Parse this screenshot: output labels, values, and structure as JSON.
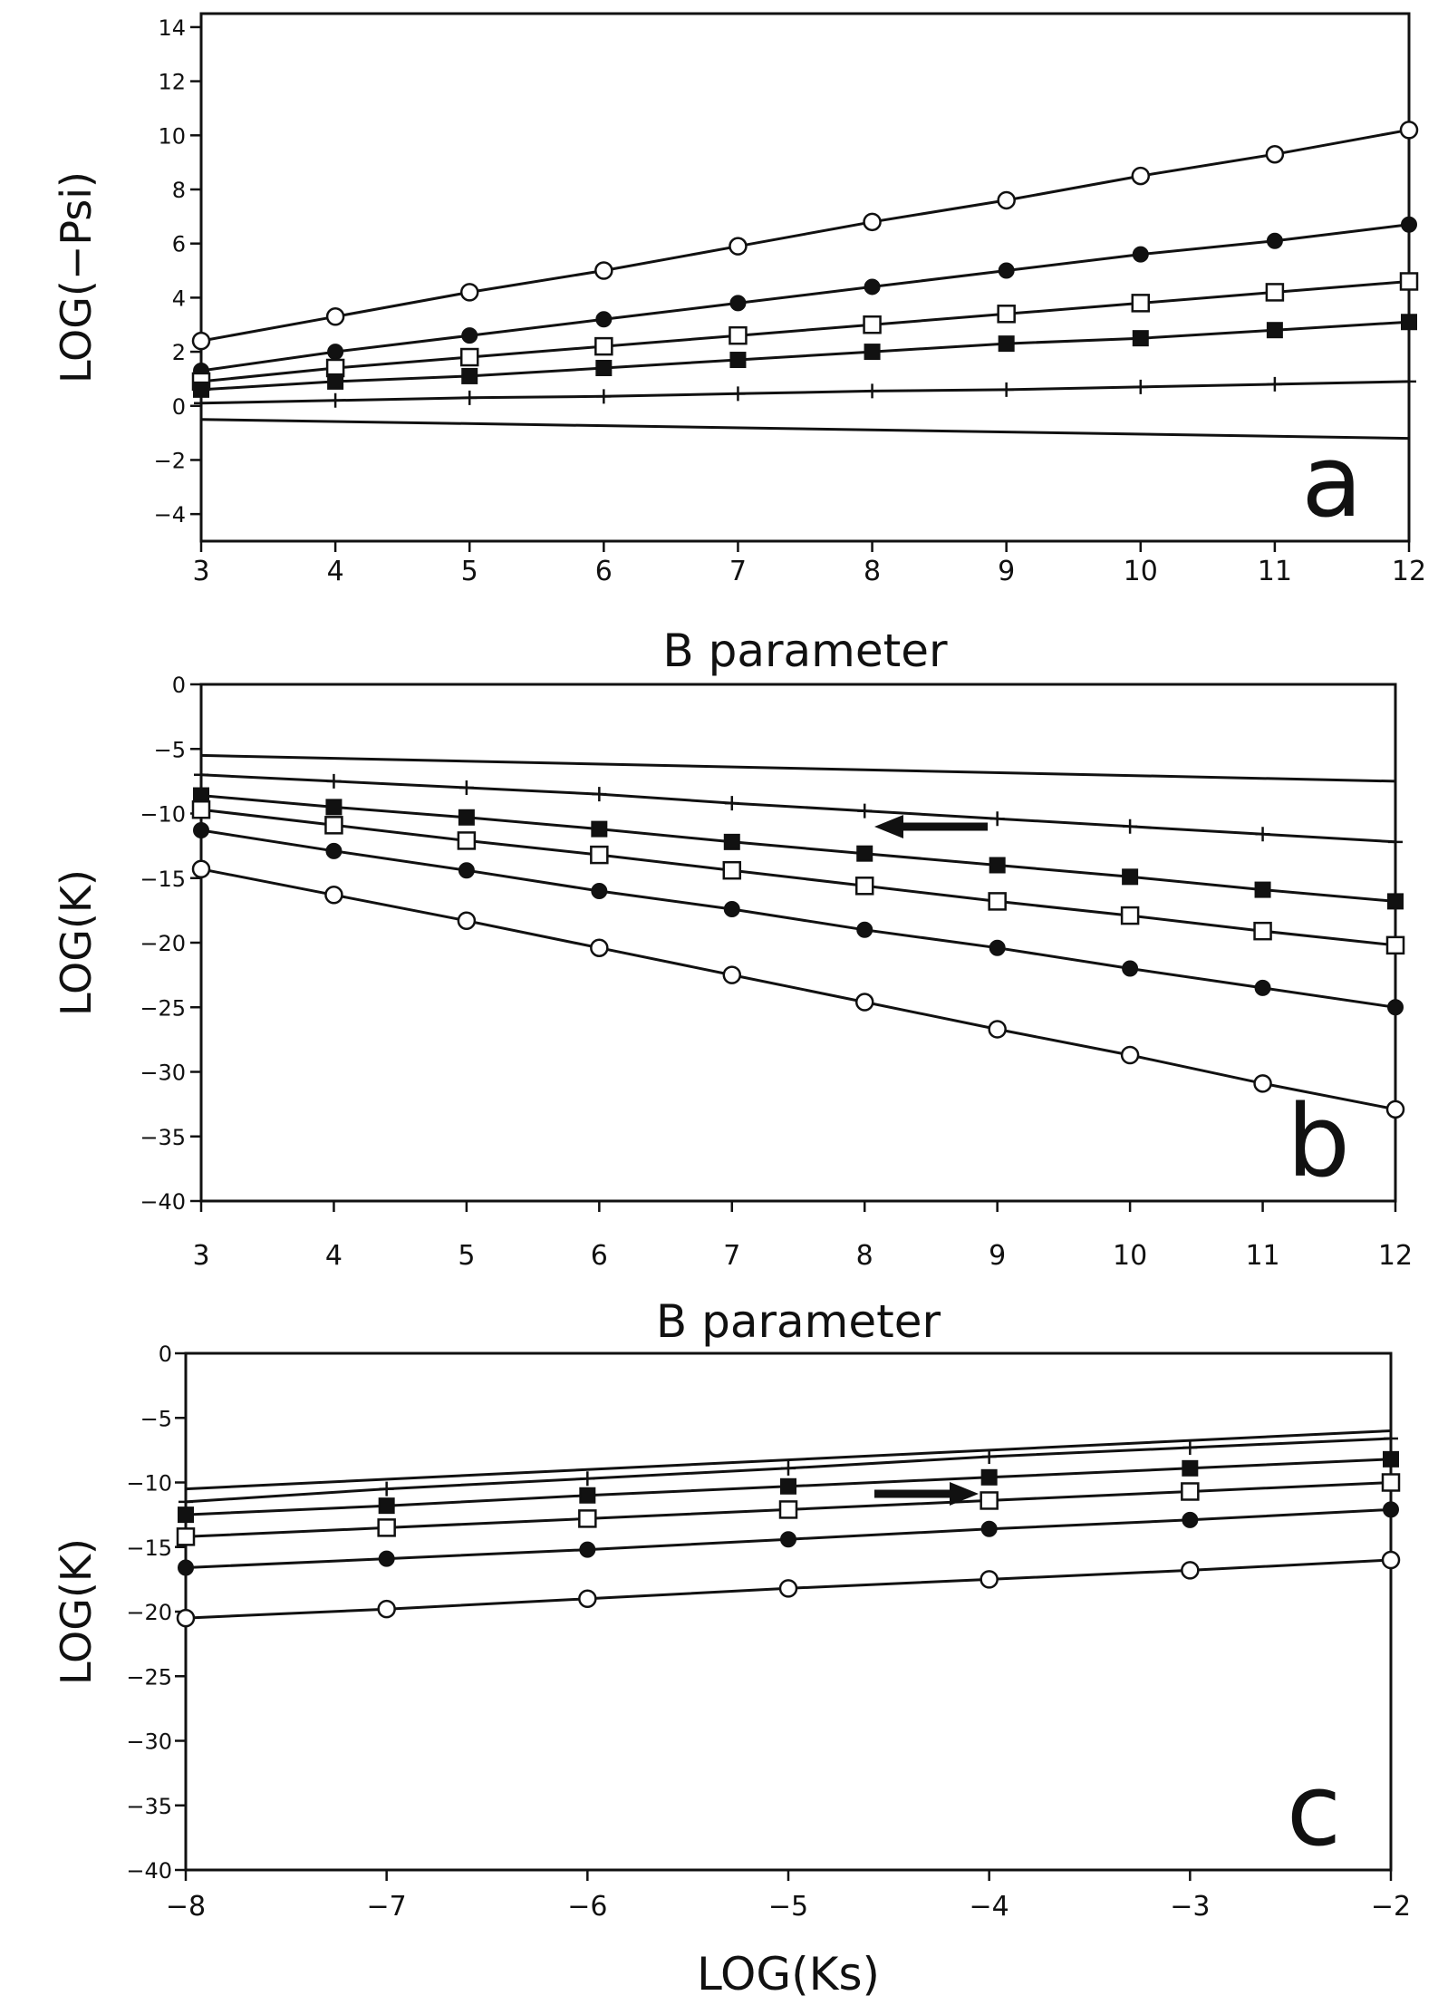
{
  "colors": {
    "ink": "#111111",
    "paper": "#ffffff"
  },
  "chart_data": [
    {
      "type": "line",
      "panel_label": "a",
      "xlabel": "B parameter",
      "ylabel": "LOG(−Psi)",
      "xlim": [
        3,
        12
      ],
      "ylim": [
        -5,
        14.5
      ],
      "xticks": [
        3,
        4,
        5,
        6,
        7,
        8,
        9,
        10,
        11,
        12
      ],
      "yticks": [
        14,
        12,
        10,
        8,
        6,
        4,
        2,
        0,
        -2,
        -4
      ],
      "grid": false,
      "series": [
        {
          "marker": "open-circle",
          "x": [
            3,
            4,
            5,
            6,
            7,
            8,
            9,
            10,
            11,
            12
          ],
          "y": [
            2.4,
            3.3,
            4.2,
            5.0,
            5.9,
            6.8,
            7.6,
            8.5,
            9.3,
            10.2
          ]
        },
        {
          "marker": "filled-circle",
          "x": [
            3,
            4,
            5,
            6,
            7,
            8,
            9,
            10,
            11,
            12
          ],
          "y": [
            1.3,
            2.0,
            2.6,
            3.2,
            3.8,
            4.4,
            5.0,
            5.6,
            6.1,
            6.7
          ]
        },
        {
          "marker": "open-square",
          "x": [
            3,
            4,
            5,
            6,
            7,
            8,
            9,
            10,
            11,
            12
          ],
          "y": [
            0.9,
            1.4,
            1.8,
            2.2,
            2.6,
            3.0,
            3.4,
            3.8,
            4.2,
            4.6
          ]
        },
        {
          "marker": "filled-square",
          "x": [
            3,
            4,
            5,
            6,
            7,
            8,
            9,
            10,
            11,
            12
          ],
          "y": [
            0.6,
            0.9,
            1.1,
            1.4,
            1.7,
            2.0,
            2.3,
            2.5,
            2.8,
            3.1
          ]
        },
        {
          "marker": "plus",
          "x": [
            3,
            4,
            5,
            6,
            7,
            8,
            9,
            10,
            11,
            12
          ],
          "y": [
            0.1,
            0.2,
            0.3,
            0.35,
            0.45,
            0.55,
            0.6,
            0.7,
            0.8,
            0.9
          ]
        },
        {
          "marker": "none",
          "x": [
            3,
            12
          ],
          "y": [
            -0.5,
            -1.2
          ]
        }
      ]
    },
    {
      "type": "line",
      "panel_label": "b",
      "xlabel": "B parameter",
      "ylabel": "LOG(K)",
      "xlim": [
        3,
        12
      ],
      "ylim": [
        -40,
        0
      ],
      "xticks": [
        3,
        4,
        5,
        6,
        7,
        8,
        9,
        10,
        11,
        12
      ],
      "yticks": [
        0,
        -5,
        -10,
        -15,
        -20,
        -25,
        -30,
        -35,
        -40
      ],
      "grid": false,
      "annotation": "left-pointing arrow",
      "series": [
        {
          "marker": "none",
          "x": [
            3,
            12
          ],
          "y": [
            -5.5,
            -7.5
          ]
        },
        {
          "marker": "plus",
          "x": [
            3,
            4,
            5,
            6,
            7,
            8,
            9,
            10,
            11,
            12
          ],
          "y": [
            -7.0,
            -7.5,
            -8.0,
            -8.5,
            -9.2,
            -9.8,
            -10.4,
            -11.0,
            -11.6,
            -12.2
          ]
        },
        {
          "marker": "filled-square",
          "x": [
            3,
            4,
            5,
            6,
            7,
            8,
            9,
            10,
            11,
            12
          ],
          "y": [
            -8.6,
            -9.5,
            -10.3,
            -11.2,
            -12.2,
            -13.1,
            -14.0,
            -14.9,
            -15.9,
            -16.8
          ]
        },
        {
          "marker": "open-square",
          "x": [
            3,
            4,
            5,
            6,
            7,
            8,
            9,
            10,
            11,
            12
          ],
          "y": [
            -9.7,
            -10.9,
            -12.1,
            -13.2,
            -14.4,
            -15.6,
            -16.8,
            -17.9,
            -19.1,
            -20.2
          ]
        },
        {
          "marker": "filled-circle",
          "x": [
            3,
            4,
            5,
            6,
            7,
            8,
            9,
            10,
            11,
            12
          ],
          "y": [
            -11.3,
            -12.9,
            -14.4,
            -16.0,
            -17.4,
            -19.0,
            -20.4,
            -22.0,
            -23.5,
            -25.0
          ]
        },
        {
          "marker": "open-circle",
          "x": [
            3,
            4,
            5,
            6,
            7,
            8,
            9,
            10,
            11,
            12
          ],
          "y": [
            -14.3,
            -16.3,
            -18.3,
            -20.4,
            -22.5,
            -24.6,
            -26.7,
            -28.7,
            -30.9,
            -32.9
          ]
        }
      ]
    },
    {
      "type": "line",
      "panel_label": "c",
      "xlabel": "LOG(Ks)",
      "ylabel": "LOG(K)",
      "xlim": [
        -8,
        -2
      ],
      "ylim": [
        -40,
        0
      ],
      "xticks": [
        -8,
        -7,
        -6,
        -5,
        -4,
        -3,
        -2
      ],
      "yticks": [
        0,
        -5,
        -10,
        -15,
        -20,
        -25,
        -30,
        -35,
        -40
      ],
      "grid": false,
      "annotation": "right-pointing arrow",
      "series": [
        {
          "marker": "none",
          "x": [
            -8,
            -2
          ],
          "y": [
            -10.5,
            -6.0
          ]
        },
        {
          "marker": "plus",
          "x": [
            -8,
            -7,
            -6,
            -5,
            -4,
            -3,
            -2
          ],
          "y": [
            -11.5,
            -10.5,
            -9.7,
            -8.9,
            -8.0,
            -7.3,
            -6.6
          ]
        },
        {
          "marker": "filled-square",
          "x": [
            -8,
            -7,
            -6,
            -5,
            -4,
            -3,
            -2
          ],
          "y": [
            -12.5,
            -11.8,
            -11.0,
            -10.3,
            -9.6,
            -8.9,
            -8.2
          ]
        },
        {
          "marker": "open-square",
          "x": [
            -8,
            -7,
            -6,
            -5,
            -4,
            -3,
            -2
          ],
          "y": [
            -14.2,
            -13.5,
            -12.8,
            -12.1,
            -11.4,
            -10.7,
            -10.0
          ]
        },
        {
          "marker": "filled-circle",
          "x": [
            -8,
            -7,
            -6,
            -5,
            -4,
            -3,
            -2
          ],
          "y": [
            -16.6,
            -15.9,
            -15.2,
            -14.4,
            -13.6,
            -12.9,
            -12.1
          ]
        },
        {
          "marker": "open-circle",
          "x": [
            -8,
            -7,
            -6,
            -5,
            -4,
            -3,
            -2
          ],
          "y": [
            -20.5,
            -19.8,
            -19.0,
            -18.2,
            -17.5,
            -16.8,
            -16.0
          ]
        }
      ]
    }
  ]
}
